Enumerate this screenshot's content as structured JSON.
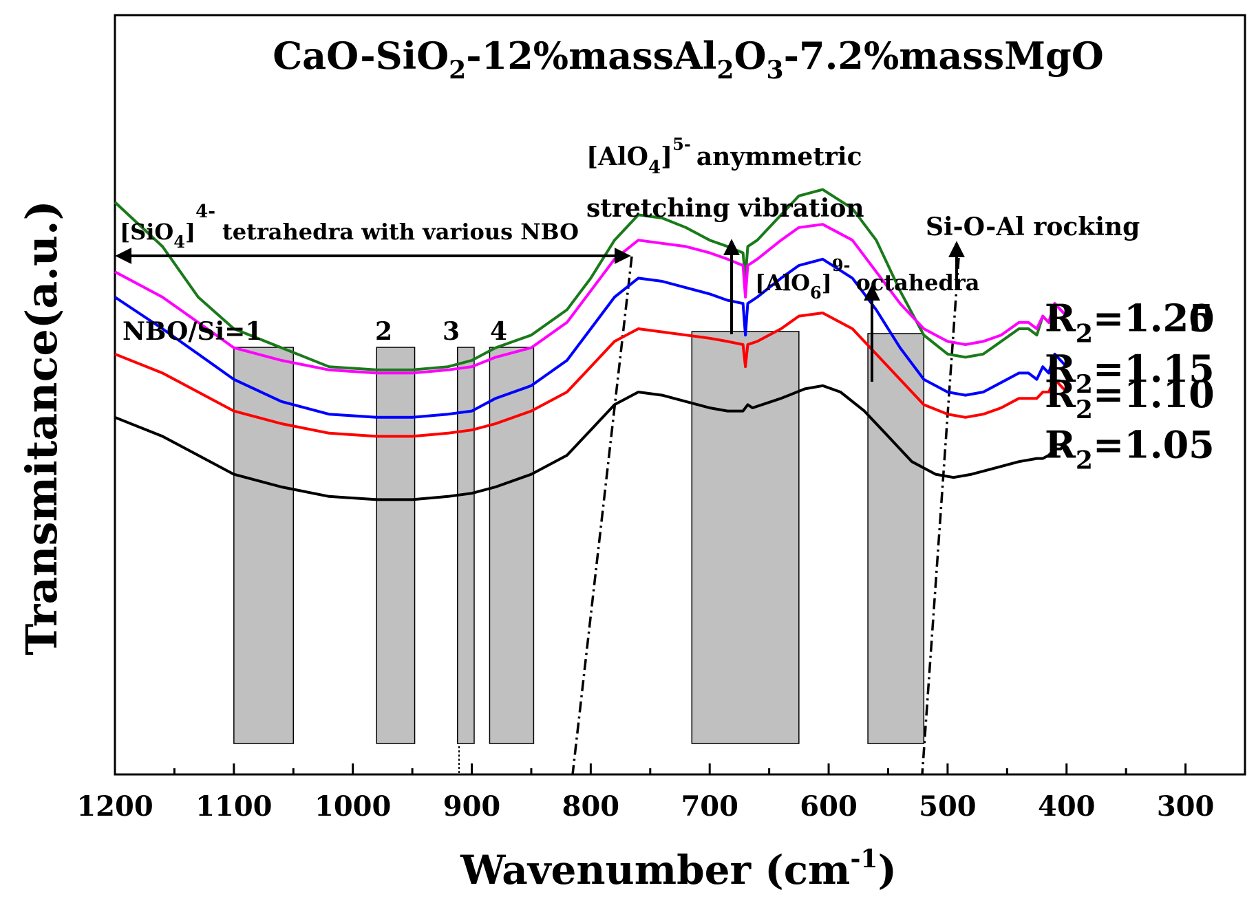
{
  "chart_data": {
    "type": "line",
    "title": [
      "CaO-SiO",
      "2",
      "-12%massAl",
      "2",
      "O",
      "3",
      "-7.2%massMgO"
    ],
    "xlabel": "Wavenumber (cm",
    "xlabel_sup": "-1",
    "xlabel_end": ")",
    "ylabel": "Transmitance(a.u.)",
    "xlim": [
      1200,
      250
    ],
    "x_reversed": true,
    "y_ticks_shown": false,
    "grid": false,
    "xticks": [
      "1200",
      "1100",
      "1000",
      "900",
      "800",
      "700",
      "600",
      "500",
      "400",
      "300"
    ],
    "xtick_values": [
      1200,
      1100,
      1000,
      900,
      800,
      700,
      600,
      500,
      400,
      300
    ],
    "series": [
      {
        "name": "R_2=1.25",
        "label_main": "R",
        "label_sub": "2",
        "label_value": "=1.25",
        "color": "#1a7a1a",
        "x": [
          1200,
          1160,
          1130,
          1100,
          1060,
          1020,
          980,
          950,
          920,
          900,
          880,
          850,
          820,
          800,
          780,
          760,
          740,
          720,
          700,
          685,
          672,
          670,
          668,
          660,
          640,
          625,
          605,
          580,
          560,
          540,
          520,
          500,
          485,
          470,
          455,
          440,
          432,
          425,
          420,
          415,
          410,
          405,
          400
        ],
        "y": [
          100,
          93,
          85,
          80,
          77,
          74,
          73.5,
          73.5,
          74,
          75,
          77,
          79,
          83,
          88,
          94,
          98,
          97.5,
          96,
          94,
          93,
          92,
          88,
          93,
          94,
          98,
          101,
          102,
          99,
          94,
          86,
          79,
          76,
          75.5,
          76,
          78,
          80,
          80,
          79,
          82,
          81,
          84,
          83,
          82
        ]
      },
      {
        "name": "R_2=1.20",
        "label_main": "R",
        "label_sub": "2",
        "label_value": "=1.20",
        "color": "#ff00ff",
        "x": [
          1200,
          1160,
          1130,
          1100,
          1060,
          1020,
          980,
          950,
          920,
          900,
          880,
          850,
          820,
          800,
          780,
          760,
          740,
          720,
          700,
          685,
          672,
          670,
          668,
          660,
          640,
          625,
          605,
          580,
          560,
          540,
          520,
          500,
          485,
          470,
          455,
          440,
          432,
          425,
          420,
          415,
          410,
          405,
          400
        ],
        "y": [
          89,
          85,
          81,
          77,
          75,
          73.5,
          73,
          73,
          73.5,
          74,
          75.5,
          77,
          81,
          86,
          91,
          94,
          93.5,
          93,
          92,
          91,
          90,
          85,
          90,
          91,
          94,
          96,
          96.5,
          94,
          89,
          84,
          80,
          78,
          77.5,
          78,
          79,
          81,
          81,
          80,
          82,
          81,
          84,
          83,
          82
        ]
      },
      {
        "name": "R_2=1.15",
        "label_main": "R",
        "label_sub": "2",
        "label_value": "=1.15",
        "color": "#0000ff",
        "x": [
          1200,
          1160,
          1130,
          1100,
          1060,
          1020,
          980,
          950,
          920,
          900,
          880,
          850,
          820,
          800,
          780,
          760,
          740,
          720,
          700,
          685,
          672,
          670,
          668,
          660,
          640,
          625,
          605,
          580,
          560,
          540,
          520,
          500,
          485,
          470,
          455,
          440,
          432,
          425,
          420,
          415,
          410,
          405,
          400
        ],
        "y": [
          85,
          80,
          76,
          72,
          68.5,
          66.5,
          66,
          66,
          66.5,
          67,
          69,
          71,
          75,
          80,
          85,
          88,
          87.5,
          86.5,
          85.5,
          84.5,
          84,
          79,
          84,
          85,
          88,
          90,
          91,
          88,
          83,
          77,
          72,
          70,
          69.5,
          70,
          71.5,
          73,
          73,
          72,
          74,
          73,
          76,
          75,
          74
        ]
      },
      {
        "name": "R_2=1.10",
        "label_main": "R",
        "label_sub": "2",
        "label_value": "=1.10",
        "color": "#ff0000",
        "x": [
          1200,
          1160,
          1130,
          1100,
          1060,
          1020,
          980,
          950,
          920,
          900,
          880,
          850,
          820,
          800,
          780,
          760,
          740,
          720,
          700,
          685,
          672,
          670,
          668,
          660,
          640,
          625,
          605,
          580,
          560,
          540,
          520,
          500,
          485,
          470,
          455,
          440,
          432,
          425,
          420,
          415,
          410,
          405,
          400
        ],
        "y": [
          76,
          73,
          70,
          67,
          65,
          63.5,
          63,
          63,
          63.5,
          64,
          65,
          67,
          70,
          74,
          78,
          80,
          79.5,
          79,
          78.5,
          78,
          77.5,
          74,
          77.5,
          78,
          80,
          82,
          82.5,
          80,
          76,
          72,
          68,
          66.5,
          66,
          66.5,
          67.5,
          69,
          69,
          69,
          70,
          70,
          72,
          71,
          70
        ]
      },
      {
        "name": "R_2=1.05",
        "label_main": "R",
        "label_sub": "2",
        "label_value": "=1.05",
        "color": "#000000",
        "x": [
          1200,
          1160,
          1130,
          1100,
          1060,
          1020,
          980,
          950,
          920,
          900,
          880,
          850,
          820,
          800,
          780,
          760,
          740,
          720,
          700,
          685,
          672,
          668,
          664,
          640,
          620,
          605,
          590,
          570,
          550,
          530,
          510,
          495,
          480,
          460,
          440,
          425,
          420,
          415,
          410,
          405,
          400
        ],
        "y": [
          66,
          63,
          60,
          57,
          55,
          53.5,
          53,
          53,
          53.5,
          54,
          55,
          57,
          60,
          64,
          68,
          70,
          69.5,
          68.5,
          67.5,
          67,
          67,
          68,
          67.5,
          69,
          70.5,
          71,
          70,
          67,
          63,
          59,
          57,
          56.5,
          57,
          58,
          59,
          59.5,
          59.5,
          60,
          61,
          61,
          62
        ]
      }
    ],
    "annotations": {
      "nbo_region": {
        "text_a": "[SiO",
        "text_sub": "4",
        "text_b": "]",
        "text_sup": "4-",
        "text_c": "tetrahedra with various NBO",
        "x_from": 1200,
        "x_to": 750
      },
      "nbo_labels": [
        "NBO/Si=1",
        "2",
        "3",
        "4"
      ],
      "nbo_bands": [
        [
          1100,
          1050
        ],
        [
          980,
          948
        ],
        [
          912,
          898
        ],
        [
          885,
          848
        ]
      ],
      "alo4": {
        "line1_a": "[AlO",
        "line1_sub": "4",
        "line1_b": "]",
        "line1_sup": "5-",
        "line1_c": "anymmetric",
        "line2": "stretching vibration",
        "band": [
          715,
          625
        ]
      },
      "alo6": {
        "text_a": "[AlO",
        "text_sub": "6",
        "text_b": "]",
        "text_sup": "9-",
        "text_c": "octahedra",
        "band": [
          567,
          520
        ]
      },
      "sioal": {
        "text": "Si-O-Al rocking"
      }
    }
  }
}
